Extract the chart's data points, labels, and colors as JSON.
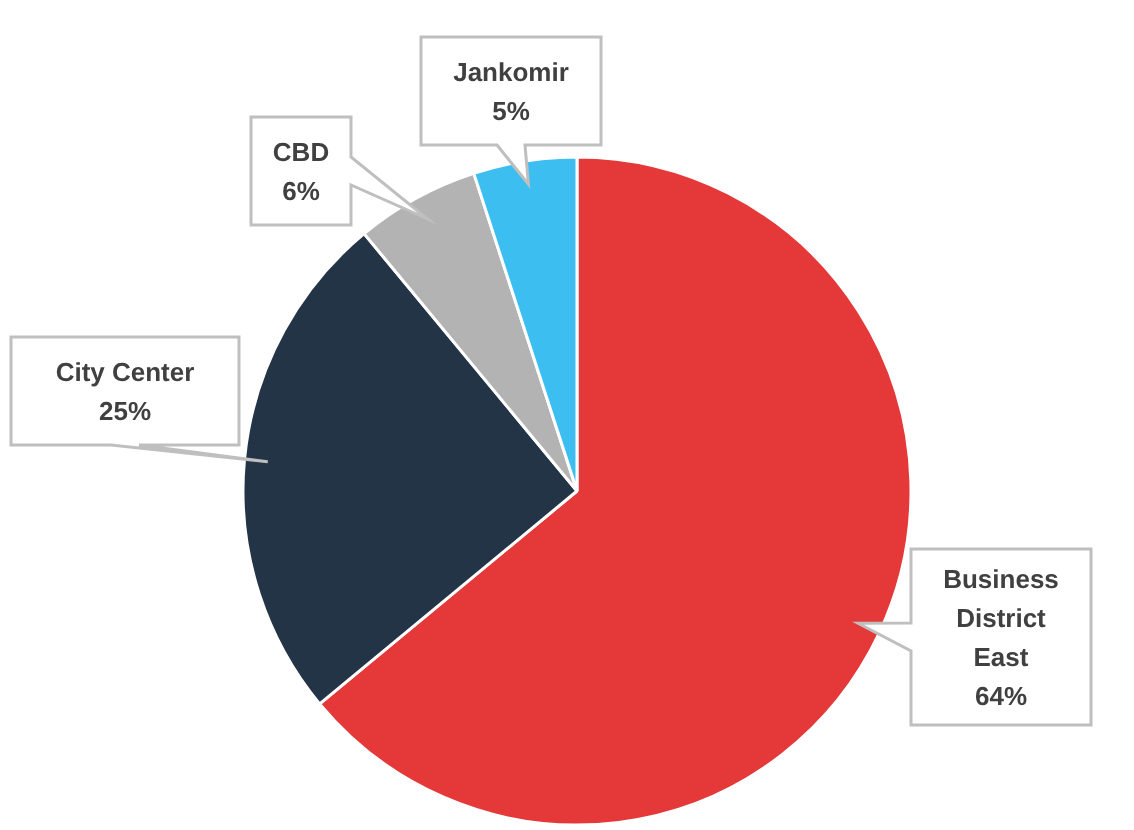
{
  "chart_data": {
    "type": "pie",
    "categories": [
      "Business District East",
      "City Center",
      "CBD",
      "Jankomir"
    ],
    "values": [
      64,
      25,
      6,
      5
    ],
    "colors": [
      "#e53838",
      "#243447",
      "#b3b3b3",
      "#3cbff0"
    ],
    "value_labels": [
      "64%",
      "25%",
      "6%",
      "5%"
    ]
  }
}
